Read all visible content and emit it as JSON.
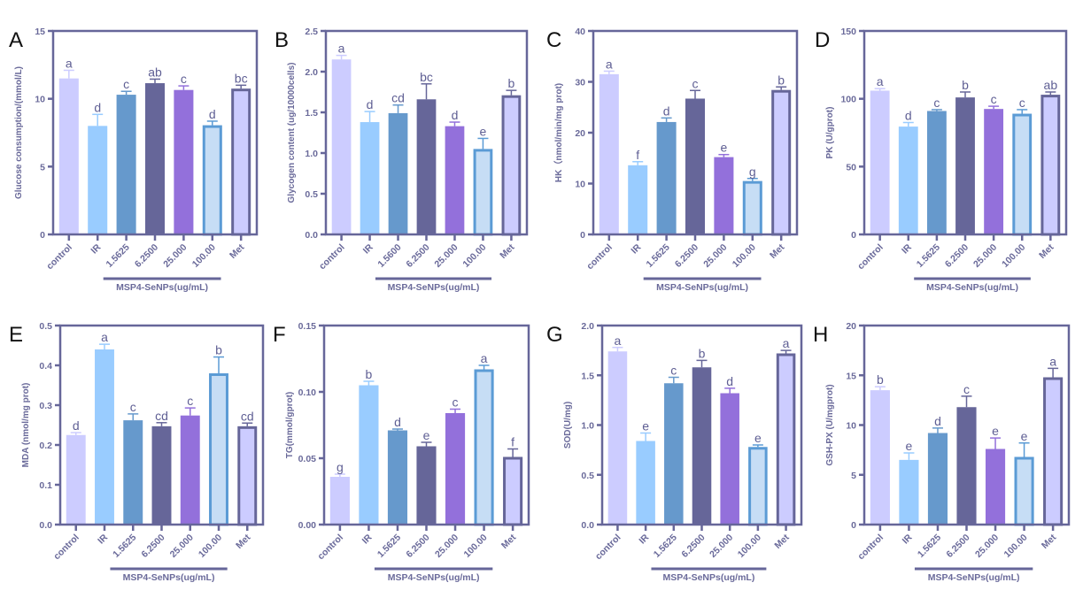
{
  "chart_data": [
    {
      "panel": "A",
      "type": "bar",
      "ylabel": "Glucose consumption/(mmol/L)",
      "ylim": [
        0,
        15
      ],
      "yticks": [
        0,
        5,
        10,
        15
      ],
      "ytick_labels": [
        "0",
        "5",
        "10",
        "15"
      ],
      "categories": [
        "control",
        "IR",
        "1.5625",
        "6.2500",
        "25.000",
        "100.00",
        "Met"
      ],
      "values": [
        11.5,
        8.0,
        10.3,
        11.15,
        10.65,
        8.05,
        10.75
      ],
      "error_upper": [
        12.1,
        8.85,
        10.55,
        11.45,
        10.95,
        8.35,
        11.0
      ],
      "significance": [
        "a",
        "d",
        "c",
        "ab",
        "c",
        "d",
        "bc"
      ],
      "group_label": "MSP4-SeNPs(ug/mL)"
    },
    {
      "panel": "B",
      "type": "bar",
      "ylabel": "Glycogen content (ug/10000cells)",
      "ylim": [
        0,
        2.5
      ],
      "yticks": [
        0,
        0.5,
        1,
        1.5,
        2,
        2.5
      ],
      "ytick_labels": [
        "0.0",
        "0.5",
        "1.0",
        "1.5",
        "2.0",
        "2.5"
      ],
      "categories": [
        "control",
        "IR",
        "1.5600",
        "6.2500",
        "25.000",
        "100.00",
        "Met"
      ],
      "values": [
        2.15,
        1.38,
        1.49,
        1.66,
        1.33,
        1.05,
        1.71
      ],
      "error_upper": [
        2.2,
        1.51,
        1.59,
        1.85,
        1.38,
        1.18,
        1.77
      ],
      "significance": [
        "a",
        "d",
        "cd",
        "bc",
        "d",
        "e",
        "b"
      ],
      "group_label": "MSP4-SeNPs(ug/mL)"
    },
    {
      "panel": "C",
      "type": "bar",
      "ylabel": "HK（nmol/min/mg prot)",
      "ylim": [
        0,
        40
      ],
      "yticks": [
        0,
        10,
        20,
        30,
        40
      ],
      "ytick_labels": [
        "0",
        "10",
        "20",
        "30",
        "40"
      ],
      "categories": [
        "control",
        "IR",
        "1.5625",
        "6.2500",
        "25.000",
        "100.00",
        "Met"
      ],
      "values": [
        31.5,
        13.6,
        22.1,
        26.7,
        15.2,
        10.5,
        28.4
      ],
      "error_upper": [
        32.1,
        14.3,
        22.9,
        28.3,
        15.7,
        11.0,
        29.0
      ],
      "significance": [
        "a",
        "f",
        "d",
        "c",
        "e",
        "g",
        "b"
      ],
      "group_label": "MSP4-SeNPs(ug/mL)"
    },
    {
      "panel": "D",
      "type": "bar",
      "ylabel": "PK (U/gprot)",
      "ylim": [
        0,
        150
      ],
      "yticks": [
        0,
        50,
        100,
        150
      ],
      "ytick_labels": [
        "0",
        "50",
        "100",
        "150"
      ],
      "categories": [
        "control",
        "IR",
        "1.5625",
        "6.2500",
        "25.000",
        "100.00",
        "Met"
      ],
      "values": [
        106,
        79.5,
        91,
        101,
        92.5,
        89,
        103
      ],
      "error_upper": [
        107.5,
        82.5,
        92,
        105,
        94.5,
        92,
        105
      ],
      "significance": [
        "a",
        "d",
        "c",
        "b",
        "c",
        "c",
        "ab"
      ],
      "group_label": "MSP4-SeNPs(ug/mL)"
    },
    {
      "panel": "E",
      "type": "bar",
      "ylabel": "MDA (nmol/mg prot)",
      "ylim": [
        0,
        0.5
      ],
      "yticks": [
        0,
        0.1,
        0.2,
        0.3,
        0.4,
        0.5
      ],
      "ytick_labels": [
        "0.0",
        "0.1",
        "0.2",
        "0.3",
        "0.4",
        "0.5"
      ],
      "categories": [
        "control",
        "IR",
        "1.5625",
        "6.2500",
        "25.000",
        "100.00",
        "Met"
      ],
      "values": [
        0.225,
        0.44,
        0.262,
        0.247,
        0.274,
        0.38,
        0.247
      ],
      "error_upper": [
        0.231,
        0.453,
        0.278,
        0.256,
        0.293,
        0.421,
        0.255
      ],
      "significance": [
        "d",
        "a",
        "c",
        "cd",
        "c",
        "b",
        "cd"
      ],
      "group_label": "MSP4-SeNPs(ug/mL)"
    },
    {
      "panel": "F",
      "type": "bar",
      "ylabel": "TG(mmol/gprot)",
      "ylim": [
        0,
        0.15
      ],
      "yticks": [
        0,
        0.05,
        0.1,
        0.15
      ],
      "ytick_labels": [
        "0.00",
        "0.05",
        "0.10",
        "0.15"
      ],
      "categories": [
        "control",
        "IR",
        "1.5625",
        "6.2500",
        "25.000",
        "100.00",
        "Met"
      ],
      "values": [
        0.036,
        0.105,
        0.071,
        0.059,
        0.084,
        0.117,
        0.051
      ],
      "error_upper": [
        0.038,
        0.108,
        0.072,
        0.062,
        0.087,
        0.12,
        0.057
      ],
      "significance": [
        "g",
        "b",
        "d",
        "e",
        "c",
        "a",
        "f"
      ],
      "group_label": "MSP4-SeNPs(ug/mL)"
    },
    {
      "panel": "G",
      "type": "bar",
      "ylabel": "SOD(U/mg)",
      "ylim": [
        0,
        2
      ],
      "yticks": [
        0,
        0.5,
        1,
        1.5,
        2
      ],
      "ytick_labels": [
        "0.0",
        "0.5",
        "1.0",
        "1.5",
        "2.0"
      ],
      "categories": [
        "control",
        "IR",
        "1.5625",
        "6.2500",
        "25.000",
        "100.00",
        "Met"
      ],
      "values": [
        1.74,
        0.84,
        1.42,
        1.58,
        1.32,
        0.78,
        1.72
      ],
      "error_upper": [
        1.78,
        0.92,
        1.48,
        1.65,
        1.37,
        0.8,
        1.75
      ],
      "significance": [
        "a",
        "e",
        "c",
        "b",
        "d",
        "e",
        "a"
      ],
      "group_label": "MSP4-SeNPs(ug/mL)"
    },
    {
      "panel": "H",
      "type": "bar",
      "ylabel": "GSH-PX (U/mgprot)",
      "ylim": [
        0,
        20
      ],
      "yticks": [
        0,
        5,
        10,
        15,
        20
      ],
      "ytick_labels": [
        "0",
        "5",
        "10",
        "15",
        "20"
      ],
      "categories": [
        "control",
        "IR",
        "1.5625",
        "6.2500",
        "25.000",
        "100.00",
        "Met"
      ],
      "values": [
        13.5,
        6.5,
        9.2,
        11.8,
        7.6,
        6.8,
        14.8
      ],
      "error_upper": [
        13.85,
        7.2,
        9.7,
        12.9,
        8.7,
        8.2,
        15.7
      ],
      "significance": [
        "b",
        "e",
        "d",
        "c",
        "e",
        "e",
        "a"
      ],
      "group_label": "MSP4-SeNPs(ug/mL)"
    }
  ],
  "colors": {
    "axis": "#666699",
    "bar_fills": [
      "#ccccff",
      "#99ccff",
      "#6699cc",
      "#666699",
      "#9370db",
      "#c6ddf5",
      "#ccccff"
    ],
    "bar_strokes": [
      "none",
      "none",
      "none",
      "none",
      "none",
      "#5b9bd5",
      "#666699"
    ]
  },
  "grid": false
}
